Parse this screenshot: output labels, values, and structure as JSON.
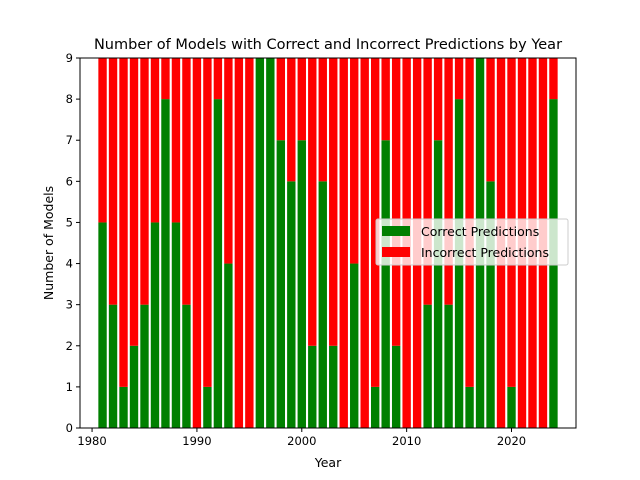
{
  "chart_data": {
    "type": "bar",
    "stacked": true,
    "title": "Number of Models with Correct and Incorrect Predictions by Year",
    "xlabel": "Year",
    "ylabel": "Number of Models",
    "xlim": [
      1978.85,
      2026.15
    ],
    "ylim": [
      0,
      9
    ],
    "xticks": [
      1980,
      1990,
      2000,
      2010,
      2020
    ],
    "yticks": [
      0,
      1,
      2,
      3,
      4,
      5,
      6,
      7,
      8,
      9
    ],
    "legend_position": "center-right",
    "grid": false,
    "x": [
      1981,
      1982,
      1983,
      1984,
      1985,
      1986,
      1987,
      1988,
      1989,
      1990,
      1991,
      1992,
      1993,
      1994,
      1995,
      1996,
      1997,
      1998,
      1999,
      2000,
      2001,
      2002,
      2003,
      2004,
      2005,
      2006,
      2007,
      2008,
      2009,
      2010,
      2011,
      2012,
      2013,
      2014,
      2015,
      2016,
      2017,
      2018,
      2019,
      2020,
      2021,
      2022,
      2023,
      2024
    ],
    "series": [
      {
        "name": "Correct Predictions",
        "color": "#008000",
        "values": [
          5,
          3,
          1,
          2,
          3,
          5,
          8,
          5,
          3,
          0,
          1,
          8,
          4,
          0,
          0,
          9,
          9,
          7,
          6,
          7,
          2,
          6,
          2,
          0,
          4,
          0,
          1,
          7,
          2,
          0,
          0,
          3,
          7,
          3,
          8,
          1,
          9,
          6,
          0,
          1,
          0,
          0,
          0,
          8
        ]
      },
      {
        "name": "Incorrect Predictions",
        "color": "#ff0000",
        "values": [
          4,
          6,
          8,
          7,
          6,
          4,
          1,
          4,
          6,
          9,
          8,
          1,
          5,
          9,
          9,
          0,
          0,
          2,
          3,
          2,
          7,
          3,
          7,
          9,
          5,
          9,
          8,
          2,
          7,
          9,
          9,
          6,
          2,
          6,
          1,
          8,
          0,
          3,
          9,
          8,
          9,
          9,
          9,
          1
        ]
      }
    ]
  }
}
